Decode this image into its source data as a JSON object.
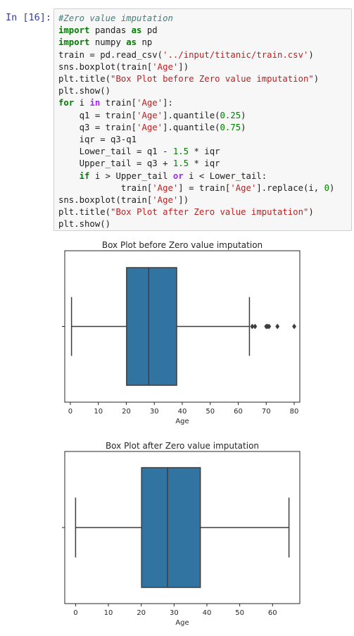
{
  "cell": {
    "prompt": "In [16]:",
    "code_lines": [
      "#Zero value imputation",
      "import pandas as pd",
      "import numpy as np",
      "train = pd.read_csv('../input/titanic/train.csv')",
      "sns.boxplot(train['Age'])",
      "plt.title(\"Box Plot before Zero value imputation\")",
      "plt.show()",
      "for i in train['Age']:",
      "    q1 = train['Age'].quantile(0.25)",
      "    q3 = train['Age'].quantile(0.75)",
      "    iqr = q3-q1",
      "    Lower_tail = q1 - 1.5 * iqr",
      "    Upper_tail = q3 + 1.5 * iqr",
      "    if i > Upper_tail or i < Lower_tail:",
      "            train['Age'] = train['Age'].replace(i, 0)",
      "sns.boxplot(train['Age'])",
      "plt.title(\"Box Plot after Zero value imputation\")",
      "plt.show()"
    ]
  },
  "chart_data": [
    {
      "type": "box",
      "title": "Box Plot before Zero value imputation",
      "xlabel": "Age",
      "ylabel": "",
      "xlim": [
        -2,
        82
      ],
      "xticks": [
        0,
        10,
        20,
        30,
        40,
        50,
        60,
        70,
        80
      ],
      "box_color": "#3274a1",
      "stats": {
        "whisker_low": 0.42,
        "q1": 20.1,
        "median": 28,
        "q3": 38,
        "whisker_high": 64
      },
      "outliers": [
        65,
        66,
        70,
        70.5,
        71,
        74,
        80
      ]
    },
    {
      "type": "box",
      "title": "Box Plot after Zero value imputation",
      "xlabel": "Age",
      "ylabel": "",
      "xlim": [
        -3.3,
        68.3
      ],
      "xticks": [
        0,
        10,
        20,
        30,
        40,
        50,
        60
      ],
      "box_color": "#3274a1",
      "stats": {
        "whisker_low": 0,
        "q1": 20.1,
        "median": 28,
        "q3": 38,
        "whisker_high": 65
      },
      "outliers": []
    }
  ]
}
